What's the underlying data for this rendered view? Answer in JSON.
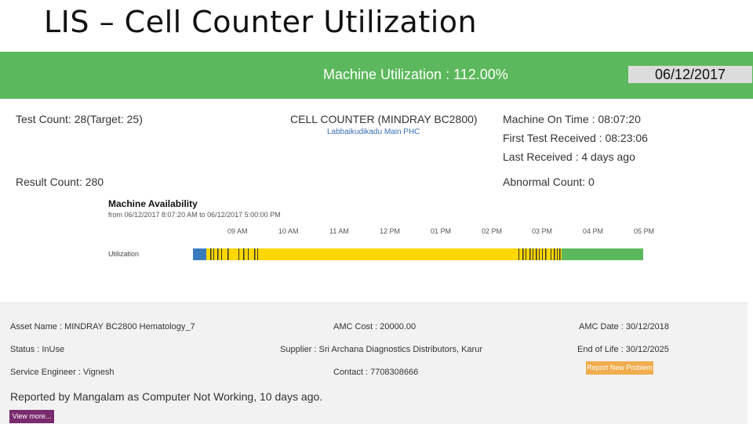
{
  "slide_title": "LIS – Cell Counter Utilization",
  "header": {
    "utilization": "Machine Utilization : 112.00%",
    "date": "06/12/2017"
  },
  "summary": {
    "test_count": "Test Count: 28(Target: 25)",
    "result_count": "Result Count: 280",
    "machine_name": "CELL COUNTER (MINDRAY BC2800)",
    "location": "Labbaikudikadu Main PHC",
    "on_time": "Machine On Time : 08:07:20",
    "first_test": "First Test Received : 08:23:06",
    "last_received": "Last Received : 4 days ago",
    "abnormal_count": "Abnormal Count: 0"
  },
  "availability": {
    "title": "Machine Availability",
    "range": "from 06/12/2017 8:07:20 AM to 06/12/2017 5:00:00 PM",
    "row_label": "Utilization",
    "ticks": [
      "09 AM",
      "10 AM",
      "11 AM",
      "12 PM",
      "01 PM",
      "02 PM",
      "03 PM",
      "04 PM",
      "05 PM"
    ],
    "colors": {
      "idle": "#3a7bbf",
      "active": "#ffd700",
      "test_mark": "#333333",
      "off": "#5cb85c"
    }
  },
  "asset": {
    "asset_name": "Asset Name : MINDRAY BC2800 Hematology_7",
    "status": "Status : InUse",
    "service_engineer": "Service Engineer : Vignesh",
    "amc_cost": "AMC Cost : 20000.00",
    "supplier": "Supplier : Sri Archana Diagnostics Distributors, Karur",
    "contact": "Contact : 7708308666",
    "amc_date": "AMC Date : 30/12/2018",
    "end_of_life": "End of Life : 30/12/2025",
    "report_button": "Report New Problem",
    "report_line": "Reported by Mangalam as Computer Not Working, 10 days ago.",
    "view_more_button": "View more..."
  }
}
